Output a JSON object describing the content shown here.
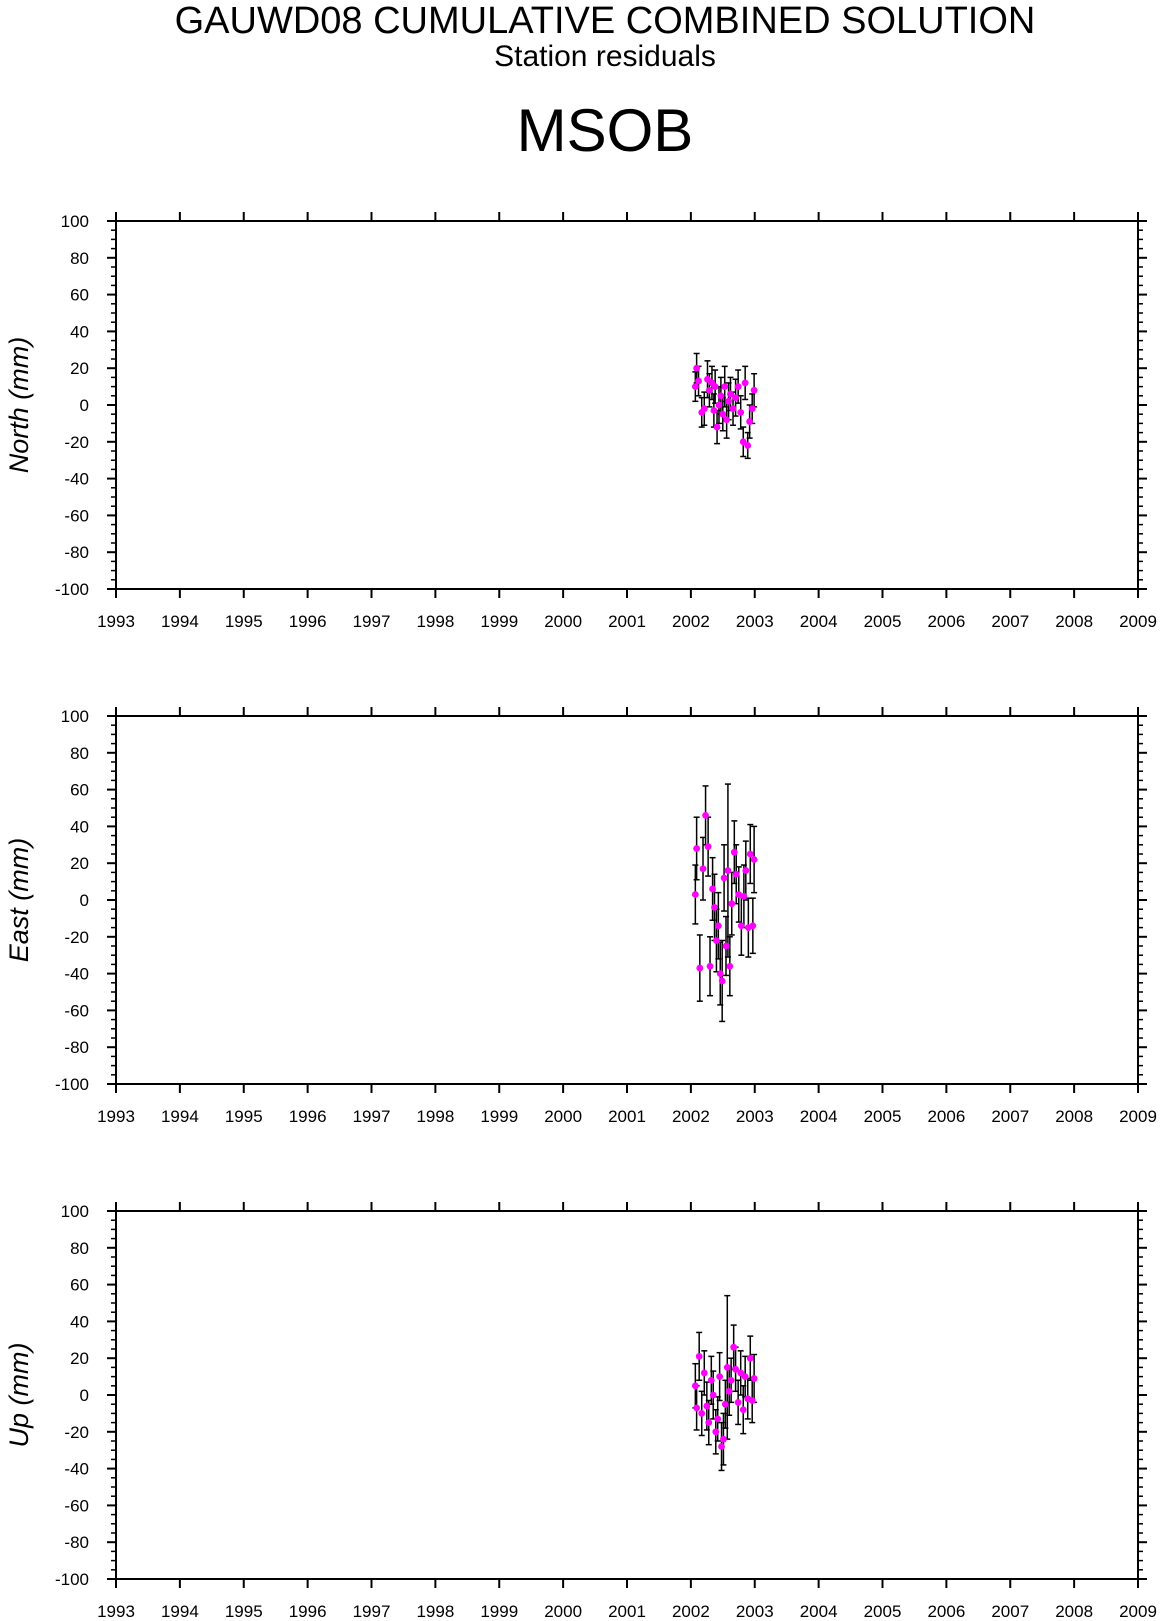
{
  "header": {
    "title": "GAUWD08 CUMULATIVE COMBINED SOLUTION",
    "subtitle": "Station residuals",
    "station": "MSOB"
  },
  "colors": {
    "point": "#ff00ff",
    "errorbar": "#000000",
    "axes": "#000000",
    "background": "#ffffff"
  },
  "chart_data": [
    {
      "type": "scatter",
      "ylabel": "North (mm)",
      "xlim": [
        1993,
        2009
      ],
      "ylim": [
        -100,
        100
      ],
      "xticks": [
        "1993",
        "1994",
        "1995",
        "1996",
        "1997",
        "1998",
        "1999",
        "2000",
        "2001",
        "2002",
        "2003",
        "2004",
        "2005",
        "2006",
        "2007",
        "2008",
        "2009"
      ],
      "yticks": [
        "100",
        "80",
        "60",
        "40",
        "20",
        "0",
        "-20",
        "-40",
        "-60",
        "-80",
        "-100"
      ],
      "error_bars": true,
      "points": [
        {
          "x": 2002.07,
          "y": 10,
          "err": 8
        },
        {
          "x": 2002.09,
          "y": 20,
          "err": 8
        },
        {
          "x": 2002.12,
          "y": 13,
          "err": 8
        },
        {
          "x": 2002.17,
          "y": -4,
          "err": 8
        },
        {
          "x": 2002.21,
          "y": -2,
          "err": 9
        },
        {
          "x": 2002.26,
          "y": 14,
          "err": 10
        },
        {
          "x": 2002.29,
          "y": 8,
          "err": 9
        },
        {
          "x": 2002.33,
          "y": 12,
          "err": 9
        },
        {
          "x": 2002.36,
          "y": -3,
          "err": 9
        },
        {
          "x": 2002.38,
          "y": 10,
          "err": 9
        },
        {
          "x": 2002.41,
          "y": -12,
          "err": 9
        },
        {
          "x": 2002.44,
          "y": 0,
          "err": 10
        },
        {
          "x": 2002.47,
          "y": 5,
          "err": 10
        },
        {
          "x": 2002.5,
          "y": -5,
          "err": 9
        },
        {
          "x": 2002.53,
          "y": 10,
          "err": 11
        },
        {
          "x": 2002.56,
          "y": -8,
          "err": 10
        },
        {
          "x": 2002.59,
          "y": 2,
          "err": 10
        },
        {
          "x": 2002.62,
          "y": 6,
          "err": 9
        },
        {
          "x": 2002.66,
          "y": -2,
          "err": 9
        },
        {
          "x": 2002.7,
          "y": 4,
          "err": 10
        },
        {
          "x": 2002.74,
          "y": 10,
          "err": 9
        },
        {
          "x": 2002.78,
          "y": -4,
          "err": 9
        },
        {
          "x": 2002.82,
          "y": -20,
          "err": 8
        },
        {
          "x": 2002.85,
          "y": 12,
          "err": 9
        },
        {
          "x": 2002.89,
          "y": -22,
          "err": 7
        },
        {
          "x": 2002.92,
          "y": -9,
          "err": 9
        },
        {
          "x": 2002.96,
          "y": -2,
          "err": 8
        },
        {
          "x": 2002.99,
          "y": 8,
          "err": 9
        }
      ]
    },
    {
      "type": "scatter",
      "ylabel": "East (mm)",
      "xlim": [
        1993,
        2009
      ],
      "ylim": [
        -100,
        100
      ],
      "xticks": [
        "1993",
        "1994",
        "1995",
        "1996",
        "1997",
        "1998",
        "1999",
        "2000",
        "2001",
        "2002",
        "2003",
        "2004",
        "2005",
        "2006",
        "2007",
        "2008",
        "2009"
      ],
      "yticks": [
        "100",
        "80",
        "60",
        "40",
        "20",
        "0",
        "-20",
        "-40",
        "-60",
        "-80",
        "-100"
      ],
      "error_bars": true,
      "points": [
        {
          "x": 2002.07,
          "y": 3,
          "err": 16
        },
        {
          "x": 2002.09,
          "y": 28,
          "err": 17
        },
        {
          "x": 2002.14,
          "y": -37,
          "err": 18
        },
        {
          "x": 2002.19,
          "y": 17,
          "err": 17
        },
        {
          "x": 2002.23,
          "y": 46,
          "err": 16
        },
        {
          "x": 2002.27,
          "y": 29,
          "err": 16
        },
        {
          "x": 2002.3,
          "y": -36,
          "err": 16
        },
        {
          "x": 2002.34,
          "y": 6,
          "err": 17
        },
        {
          "x": 2002.37,
          "y": -4,
          "err": 18
        },
        {
          "x": 2002.4,
          "y": -22,
          "err": 17
        },
        {
          "x": 2002.43,
          "y": -14,
          "err": 18
        },
        {
          "x": 2002.46,
          "y": -40,
          "err": 17
        },
        {
          "x": 2002.49,
          "y": -44,
          "err": 22
        },
        {
          "x": 2002.52,
          "y": 12,
          "err": 18
        },
        {
          "x": 2002.55,
          "y": -25,
          "err": 16
        },
        {
          "x": 2002.58,
          "y": 16,
          "err": 47
        },
        {
          "x": 2002.61,
          "y": -36,
          "err": 16
        },
        {
          "x": 2002.64,
          "y": -2,
          "err": 17
        },
        {
          "x": 2002.68,
          "y": 26,
          "err": 17
        },
        {
          "x": 2002.71,
          "y": 14,
          "err": 16
        },
        {
          "x": 2002.75,
          "y": 3,
          "err": 15
        },
        {
          "x": 2002.79,
          "y": -14,
          "err": 16
        },
        {
          "x": 2002.83,
          "y": 2,
          "err": 17
        },
        {
          "x": 2002.86,
          "y": 16,
          "err": 16
        },
        {
          "x": 2002.9,
          "y": -15,
          "err": 16
        },
        {
          "x": 2002.93,
          "y": 25,
          "err": 16
        },
        {
          "x": 2002.97,
          "y": -14,
          "err": 15
        },
        {
          "x": 2002.99,
          "y": 22,
          "err": 18
        }
      ]
    },
    {
      "type": "scatter",
      "ylabel": "Up (mm)",
      "xlim": [
        1993,
        2009
      ],
      "ylim": [
        -100,
        100
      ],
      "xticks": [
        "1993",
        "1994",
        "1995",
        "1996",
        "1997",
        "1998",
        "1999",
        "2000",
        "2001",
        "2002",
        "2003",
        "2004",
        "2005",
        "2006",
        "2007",
        "2008",
        "2009"
      ],
      "yticks": [
        "100",
        "80",
        "60",
        "40",
        "20",
        "0",
        "-20",
        "-40",
        "-60",
        "-80",
        "-100"
      ],
      "error_bars": true,
      "points": [
        {
          "x": 2002.07,
          "y": 5,
          "err": 12
        },
        {
          "x": 2002.09,
          "y": -7,
          "err": 12
        },
        {
          "x": 2002.13,
          "y": 21,
          "err": 13
        },
        {
          "x": 2002.17,
          "y": -10,
          "err": 12
        },
        {
          "x": 2002.21,
          "y": 12,
          "err": 12
        },
        {
          "x": 2002.25,
          "y": -6,
          "err": 13
        },
        {
          "x": 2002.28,
          "y": -15,
          "err": 12
        },
        {
          "x": 2002.32,
          "y": 8,
          "err": 13
        },
        {
          "x": 2002.35,
          "y": 0,
          "err": 13
        },
        {
          "x": 2002.39,
          "y": -20,
          "err": 12
        },
        {
          "x": 2002.42,
          "y": -13,
          "err": 12
        },
        {
          "x": 2002.45,
          "y": 10,
          "err": 13
        },
        {
          "x": 2002.48,
          "y": -28,
          "err": 13
        },
        {
          "x": 2002.51,
          "y": -24,
          "err": 14
        },
        {
          "x": 2002.54,
          "y": -5,
          "err": 13
        },
        {
          "x": 2002.57,
          "y": 15,
          "err": 39
        },
        {
          "x": 2002.6,
          "y": 2,
          "err": 13
        },
        {
          "x": 2002.63,
          "y": 8,
          "err": 12
        },
        {
          "x": 2002.67,
          "y": 26,
          "err": 12
        },
        {
          "x": 2002.7,
          "y": 14,
          "err": 12
        },
        {
          "x": 2002.74,
          "y": -4,
          "err": 12
        },
        {
          "x": 2002.78,
          "y": 12,
          "err": 12
        },
        {
          "x": 2002.82,
          "y": -8,
          "err": 13
        },
        {
          "x": 2002.85,
          "y": 10,
          "err": 11
        },
        {
          "x": 2002.89,
          "y": -2,
          "err": 11
        },
        {
          "x": 2002.93,
          "y": 20,
          "err": 12
        },
        {
          "x": 2002.96,
          "y": -3,
          "err": 12
        },
        {
          "x": 2002.99,
          "y": 9,
          "err": 13
        }
      ]
    }
  ]
}
